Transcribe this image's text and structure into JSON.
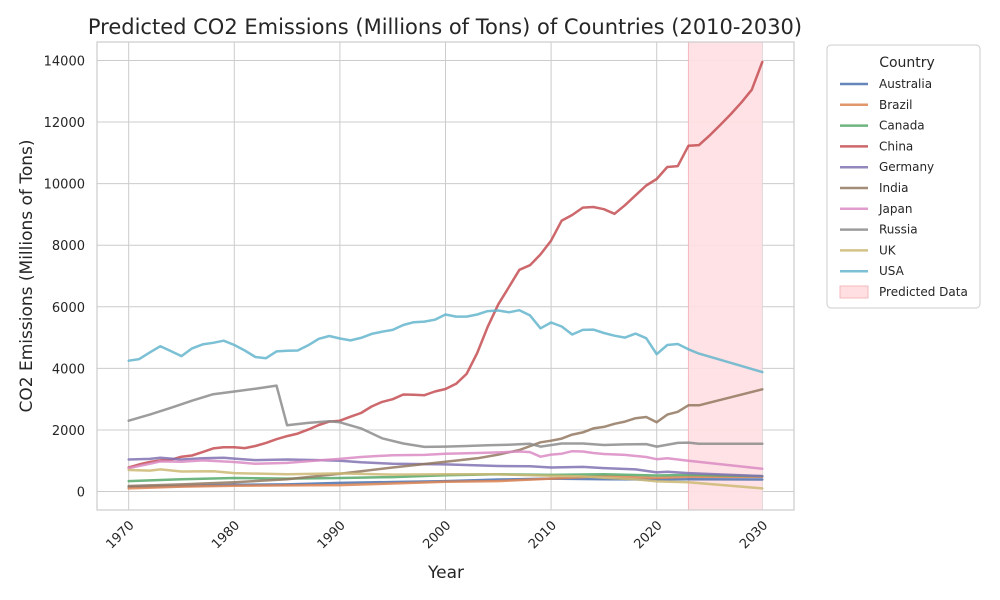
{
  "chart_data": {
    "type": "line",
    "title": "Predicted CO2 Emissions (Millions of Tons) of Countries (2010-2030)",
    "xlabel": "Year",
    "ylabel": "CO2 Emissions (Millions of Tons)",
    "xlim": [
      1967,
      2033
    ],
    "ylim": [
      -600,
      14600
    ],
    "x_ticks": [
      1970,
      1980,
      1990,
      2000,
      2010,
      2020,
      2030
    ],
    "y_ticks": [
      0,
      2000,
      4000,
      6000,
      8000,
      10000,
      12000,
      14000
    ],
    "grid": true,
    "legend_title": "Country",
    "legend_position": "outside right",
    "predicted_region": {
      "label": "Predicted Data",
      "start": 2023,
      "end": 2030,
      "color": "#ffdfe2"
    },
    "series": [
      {
        "name": "Australia",
        "color": "#4c72b0",
        "points": [
          [
            1970,
            150
          ],
          [
            1975,
            180
          ],
          [
            1980,
            220
          ],
          [
            1985,
            230
          ],
          [
            1990,
            280
          ],
          [
            1995,
            310
          ],
          [
            2000,
            340
          ],
          [
            2005,
            390
          ],
          [
            2010,
            420
          ],
          [
            2015,
            400
          ],
          [
            2020,
            390
          ],
          [
            2023,
            400
          ],
          [
            2030,
            390
          ]
        ]
      },
      {
        "name": "Brazil",
        "color": "#dd8452",
        "points": [
          [
            1970,
            100
          ],
          [
            1975,
            160
          ],
          [
            1980,
            190
          ],
          [
            1985,
            200
          ],
          [
            1990,
            210
          ],
          [
            1995,
            260
          ],
          [
            2000,
            320
          ],
          [
            2005,
            340
          ],
          [
            2010,
            420
          ],
          [
            2015,
            500
          ],
          [
            2020,
            440
          ],
          [
            2023,
            480
          ],
          [
            2030,
            480
          ]
        ]
      },
      {
        "name": "Canada",
        "color": "#55a868",
        "points": [
          [
            1970,
            340
          ],
          [
            1975,
            400
          ],
          [
            1980,
            440
          ],
          [
            1985,
            420
          ],
          [
            1990,
            440
          ],
          [
            1995,
            470
          ],
          [
            2000,
            530
          ],
          [
            2005,
            560
          ],
          [
            2010,
            540
          ],
          [
            2015,
            560
          ],
          [
            2020,
            520
          ],
          [
            2023,
            540
          ],
          [
            2030,
            500
          ]
        ]
      },
      {
        "name": "China",
        "color": "#c44e52",
        "points": [
          [
            1970,
            780
          ],
          [
            1971,
            880
          ],
          [
            1972,
            960
          ],
          [
            1973,
            1010
          ],
          [
            1974,
            1030
          ],
          [
            1975,
            1130
          ],
          [
            1976,
            1170
          ],
          [
            1977,
            1280
          ],
          [
            1978,
            1400
          ],
          [
            1979,
            1440
          ],
          [
            1980,
            1440
          ],
          [
            1981,
            1410
          ],
          [
            1982,
            1480
          ],
          [
            1983,
            1580
          ],
          [
            1984,
            1700
          ],
          [
            1985,
            1800
          ],
          [
            1986,
            1880
          ],
          [
            1987,
            2010
          ],
          [
            1988,
            2160
          ],
          [
            1989,
            2270
          ],
          [
            1990,
            2300
          ],
          [
            1991,
            2430
          ],
          [
            1992,
            2550
          ],
          [
            1993,
            2760
          ],
          [
            1994,
            2910
          ],
          [
            1995,
            3000
          ],
          [
            1996,
            3150
          ],
          [
            1997,
            3140
          ],
          [
            1998,
            3130
          ],
          [
            1999,
            3250
          ],
          [
            2000,
            3330
          ],
          [
            2001,
            3500
          ],
          [
            2002,
            3820
          ],
          [
            2003,
            4500
          ],
          [
            2004,
            5350
          ],
          [
            2005,
            6080
          ],
          [
            2006,
            6640
          ],
          [
            2007,
            7200
          ],
          [
            2008,
            7350
          ],
          [
            2009,
            7700
          ],
          [
            2010,
            8150
          ],
          [
            2011,
            8800
          ],
          [
            2012,
            8980
          ],
          [
            2013,
            9220
          ],
          [
            2014,
            9240
          ],
          [
            2015,
            9170
          ],
          [
            2016,
            9020
          ],
          [
            2017,
            9300
          ],
          [
            2018,
            9620
          ],
          [
            2019,
            9940
          ],
          [
            2020,
            10150
          ],
          [
            2021,
            10540
          ],
          [
            2022,
            10570
          ],
          [
            2023,
            11230
          ],
          [
            2024,
            11250
          ],
          [
            2025,
            11560
          ],
          [
            2026,
            11900
          ],
          [
            2027,
            12250
          ],
          [
            2028,
            12630
          ],
          [
            2029,
            13050
          ],
          [
            2030,
            13950
          ]
        ]
      },
      {
        "name": "Germany",
        "color": "#8172b3",
        "points": [
          [
            1970,
            1040
          ],
          [
            1972,
            1060
          ],
          [
            1973,
            1100
          ],
          [
            1975,
            1040
          ],
          [
            1977,
            1080
          ],
          [
            1979,
            1100
          ],
          [
            1980,
            1070
          ],
          [
            1982,
            1020
          ],
          [
            1985,
            1040
          ],
          [
            1988,
            1020
          ],
          [
            1990,
            1000
          ],
          [
            1992,
            950
          ],
          [
            1995,
            900
          ],
          [
            2000,
            880
          ],
          [
            2005,
            830
          ],
          [
            2008,
            820
          ],
          [
            2010,
            780
          ],
          [
            2013,
            800
          ],
          [
            2015,
            760
          ],
          [
            2018,
            720
          ],
          [
            2020,
            620
          ],
          [
            2021,
            640
          ],
          [
            2023,
            600
          ],
          [
            2030,
            500
          ]
        ]
      },
      {
        "name": "India",
        "color": "#937860",
        "points": [
          [
            1970,
            180
          ],
          [
            1975,
            230
          ],
          [
            1980,
            300
          ],
          [
            1985,
            400
          ],
          [
            1990,
            580
          ],
          [
            1995,
            780
          ],
          [
            2000,
            970
          ],
          [
            2003,
            1080
          ],
          [
            2005,
            1200
          ],
          [
            2007,
            1350
          ],
          [
            2009,
            1600
          ],
          [
            2010,
            1650
          ],
          [
            2011,
            1720
          ],
          [
            2012,
            1850
          ],
          [
            2013,
            1920
          ],
          [
            2014,
            2050
          ],
          [
            2015,
            2100
          ],
          [
            2016,
            2200
          ],
          [
            2017,
            2270
          ],
          [
            2018,
            2380
          ],
          [
            2019,
            2420
          ],
          [
            2020,
            2250
          ],
          [
            2021,
            2500
          ],
          [
            2022,
            2590
          ],
          [
            2023,
            2800
          ],
          [
            2024,
            2800
          ],
          [
            2030,
            3320
          ]
        ]
      },
      {
        "name": "Japan",
        "color": "#da8bc3",
        "points": [
          [
            1970,
            760
          ],
          [
            1972,
            900
          ],
          [
            1973,
            980
          ],
          [
            1975,
            970
          ],
          [
            1977,
            1010
          ],
          [
            1980,
            960
          ],
          [
            1982,
            900
          ],
          [
            1985,
            930
          ],
          [
            1988,
            1010
          ],
          [
            1990,
            1060
          ],
          [
            1992,
            1120
          ],
          [
            1995,
            1180
          ],
          [
            1998,
            1190
          ],
          [
            2000,
            1230
          ],
          [
            2003,
            1250
          ],
          [
            2005,
            1270
          ],
          [
            2007,
            1300
          ],
          [
            2008,
            1280
          ],
          [
            2009,
            1130
          ],
          [
            2010,
            1200
          ],
          [
            2011,
            1230
          ],
          [
            2012,
            1310
          ],
          [
            2013,
            1300
          ],
          [
            2014,
            1250
          ],
          [
            2015,
            1220
          ],
          [
            2017,
            1190
          ],
          [
            2019,
            1120
          ],
          [
            2020,
            1050
          ],
          [
            2021,
            1080
          ],
          [
            2023,
            1000
          ],
          [
            2030,
            740
          ]
        ]
      },
      {
        "name": "Russia",
        "color": "#8c8c8c",
        "points": [
          [
            1970,
            2300
          ],
          [
            1972,
            2500
          ],
          [
            1974,
            2720
          ],
          [
            1976,
            2950
          ],
          [
            1978,
            3160
          ],
          [
            1980,
            3250
          ],
          [
            1982,
            3340
          ],
          [
            1984,
            3440
          ],
          [
            1985,
            2150
          ],
          [
            1987,
            2230
          ],
          [
            1989,
            2280
          ],
          [
            1990,
            2250
          ],
          [
            1992,
            2050
          ],
          [
            1994,
            1730
          ],
          [
            1996,
            1560
          ],
          [
            1998,
            1450
          ],
          [
            2000,
            1460
          ],
          [
            2002,
            1480
          ],
          [
            2004,
            1500
          ],
          [
            2006,
            1520
          ],
          [
            2008,
            1550
          ],
          [
            2009,
            1460
          ],
          [
            2011,
            1560
          ],
          [
            2013,
            1560
          ],
          [
            2015,
            1510
          ],
          [
            2017,
            1530
          ],
          [
            2019,
            1540
          ],
          [
            2020,
            1460
          ],
          [
            2022,
            1580
          ],
          [
            2023,
            1590
          ],
          [
            2024,
            1550
          ],
          [
            2030,
            1550
          ]
        ]
      },
      {
        "name": "UK",
        "color": "#ccb974",
        "points": [
          [
            1970,
            700
          ],
          [
            1972,
            680
          ],
          [
            1973,
            720
          ],
          [
            1975,
            650
          ],
          [
            1978,
            660
          ],
          [
            1980,
            600
          ],
          [
            1985,
            560
          ],
          [
            1990,
            590
          ],
          [
            1995,
            550
          ],
          [
            2000,
            560
          ],
          [
            2005,
            560
          ],
          [
            2010,
            510
          ],
          [
            2013,
            490
          ],
          [
            2015,
            450
          ],
          [
            2018,
            400
          ],
          [
            2020,
            330
          ],
          [
            2023,
            300
          ],
          [
            2030,
            100
          ]
        ]
      },
      {
        "name": "USA",
        "color": "#64b5cd",
        "points": [
          [
            1970,
            4250
          ],
          [
            1971,
            4300
          ],
          [
            1972,
            4520
          ],
          [
            1973,
            4720
          ],
          [
            1974,
            4560
          ],
          [
            1975,
            4400
          ],
          [
            1976,
            4650
          ],
          [
            1977,
            4780
          ],
          [
            1978,
            4830
          ],
          [
            1979,
            4900
          ],
          [
            1980,
            4760
          ],
          [
            1981,
            4580
          ],
          [
            1982,
            4370
          ],
          [
            1983,
            4330
          ],
          [
            1984,
            4550
          ],
          [
            1985,
            4570
          ],
          [
            1986,
            4580
          ],
          [
            1987,
            4750
          ],
          [
            1988,
            4960
          ],
          [
            1989,
            5050
          ],
          [
            1990,
            4970
          ],
          [
            1991,
            4910
          ],
          [
            1992,
            4990
          ],
          [
            1993,
            5120
          ],
          [
            1994,
            5190
          ],
          [
            1995,
            5250
          ],
          [
            1996,
            5410
          ],
          [
            1997,
            5500
          ],
          [
            1998,
            5520
          ],
          [
            1999,
            5580
          ],
          [
            2000,
            5750
          ],
          [
            2001,
            5680
          ],
          [
            2002,
            5680
          ],
          [
            2003,
            5750
          ],
          [
            2004,
            5860
          ],
          [
            2005,
            5880
          ],
          [
            2006,
            5820
          ],
          [
            2007,
            5890
          ],
          [
            2008,
            5720
          ],
          [
            2009,
            5300
          ],
          [
            2010,
            5490
          ],
          [
            2011,
            5360
          ],
          [
            2012,
            5100
          ],
          [
            2013,
            5250
          ],
          [
            2014,
            5260
          ],
          [
            2015,
            5150
          ],
          [
            2016,
            5060
          ],
          [
            2017,
            5000
          ],
          [
            2018,
            5130
          ],
          [
            2019,
            4980
          ],
          [
            2020,
            4460
          ],
          [
            2021,
            4760
          ],
          [
            2022,
            4790
          ],
          [
            2023,
            4620
          ],
          [
            2024,
            4480
          ],
          [
            2030,
            3880
          ]
        ]
      }
    ]
  }
}
